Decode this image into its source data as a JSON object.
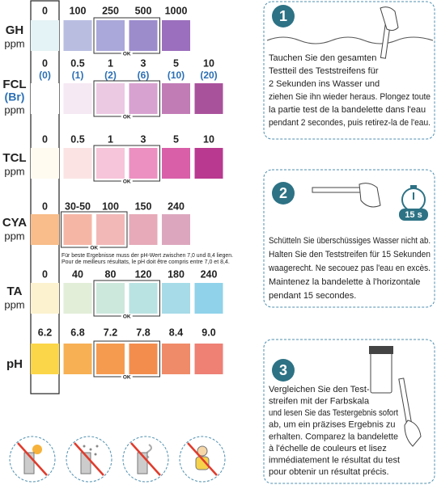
{
  "rows": [
    {
      "name": "GH",
      "unit": "ppm",
      "levels": [
        "0",
        "100",
        "250",
        "500",
        "1000"
      ],
      "colors": [
        "#e4f3f5",
        "#b9bee1",
        "#aaa7da",
        "#9c8ccc",
        "#9b6fbd"
      ],
      "ok": "OK"
    },
    {
      "name": "FCL",
      "name2": "(Br)",
      "unit": "ppm",
      "levels": [
        "0",
        "0.5",
        "1",
        "3",
        "5",
        "10"
      ],
      "levels2": [
        "(0)",
        "(1)",
        "(2)",
        "(6)",
        "(10)",
        "(20)"
      ],
      "colors": [
        "#ffffff",
        "#f5e9f3",
        "#ecc9e3",
        "#d8a2d0",
        "#c17cb6",
        "#a9529c"
      ],
      "ok": "OK"
    },
    {
      "name": "TCL",
      "unit": "ppm",
      "levels": [
        "0",
        "0.5",
        "1",
        "3",
        "5",
        "10"
      ],
      "colors": [
        "#fffbf0",
        "#fbe3e4",
        "#f7c5da",
        "#ec90c1",
        "#d95fa9",
        "#b93990"
      ],
      "ok": "OK"
    },
    {
      "name": "CYA",
      "unit": "ppm",
      "levels": [
        "0",
        "30-50",
        "100",
        "150",
        "240"
      ],
      "colors": [
        "#f8bd8a",
        "#f6b6a6",
        "#f2b8b8",
        "#e6aab9",
        "#dca7be"
      ],
      "ok": "OK"
    },
    {
      "name": "TA",
      "unit": "ppm",
      "levels": [
        "0",
        "40",
        "80",
        "120",
        "180",
        "240"
      ],
      "colors": [
        "#fcf2cf",
        "#e2eed8",
        "#cce8dd",
        "#b9e3e2",
        "#a7dbe8",
        "#90d2ea"
      ],
      "ok": "OK"
    },
    {
      "name": "pH",
      "levels": [
        "6.2",
        "6.8",
        "7.2",
        "7.8",
        "8.4",
        "9.0"
      ],
      "colors": [
        "#fbd648",
        "#f7b054",
        "#f59b50",
        "#f38d4d",
        "#f08b69",
        "#ee8074"
      ],
      "ok": "OK"
    }
  ],
  "note": [
    "Für beste Ergebnisse muss der pH-Wert zwischen 7,0 und 8,4 liegen.",
    "Pour de meilleurs résultats, le pH doit être compris entre 7,0 et 8,4."
  ],
  "steps": [
    {
      "number": "1",
      "lines": [
        "Tauchen Sie den gesamten",
        "Testteil des Teststreifens für",
        "2 Sekunden ins Wasser und",
        "ziehen Sie ihn wieder heraus. Plongez toute",
        "la partie test de la bandelette dans l'eau",
        "pendant 2 secondes, puis retirez-la de l'eau."
      ]
    },
    {
      "number": "2",
      "timer": "15 s",
      "lines": [
        "Schütteln Sie überschüssiges Wasser nicht ab.",
        "Halten Sie den Teststreifen für 15 Sekunden",
        "waagerecht. Ne secouez pas l'eau en excès.",
        "Maintenez la bandelette à l'horizontale",
        "pendant 15 secondes."
      ]
    },
    {
      "number": "3",
      "lines": [
        "Vergleichen Sie den Test-",
        "streifen mit der Farbskala",
        "und lesen Sie das Testergebnis sofort",
        "ab, um ein präzises Ergebnis zu",
        "erhalten. Comparez la bandelette",
        "à l'échelle de couleurs et lisez",
        "immédiatement le résultat du test",
        "pour obtenir un résultat précis."
      ]
    }
  ]
}
